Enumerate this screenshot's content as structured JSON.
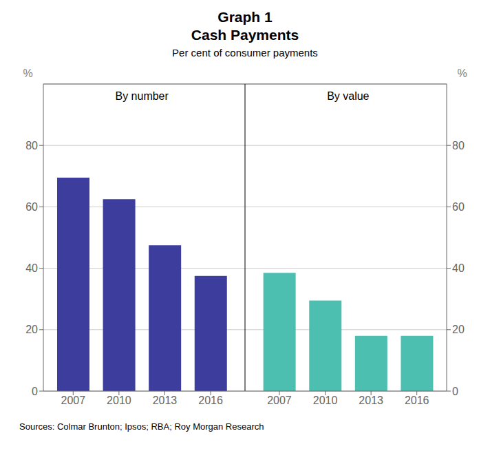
{
  "chart_data": {
    "type": "bar",
    "title": "Graph 1\nCash Payments",
    "subtitle": "Per cent of consumer payments",
    "categories": [
      "2007",
      "2010",
      "2013",
      "2016",
      "2007",
      "2010",
      "2013",
      "2016"
    ],
    "series": [
      {
        "name": "By number",
        "color": "#3D3D9E",
        "values": [
          69.5,
          62.5,
          47.5,
          37.5,
          null,
          null,
          null,
          null
        ]
      },
      {
        "name": "By value",
        "color": "#4DBFB0",
        "values": [
          null,
          null,
          null,
          null,
          38.5,
          29.5,
          18.0,
          18.0
        ]
      }
    ],
    "ylabel": "%",
    "y2label": "%",
    "ylim": [
      0,
      100
    ],
    "yticks": [
      0,
      20,
      40,
      60,
      80
    ],
    "y2lim": [
      0,
      100
    ],
    "y2ticks": [
      0,
      20,
      40,
      60,
      80
    ],
    "grid": true,
    "source": "Sources: Colmar Brunton; Ipsos; RBA; Roy Morgan Research"
  }
}
